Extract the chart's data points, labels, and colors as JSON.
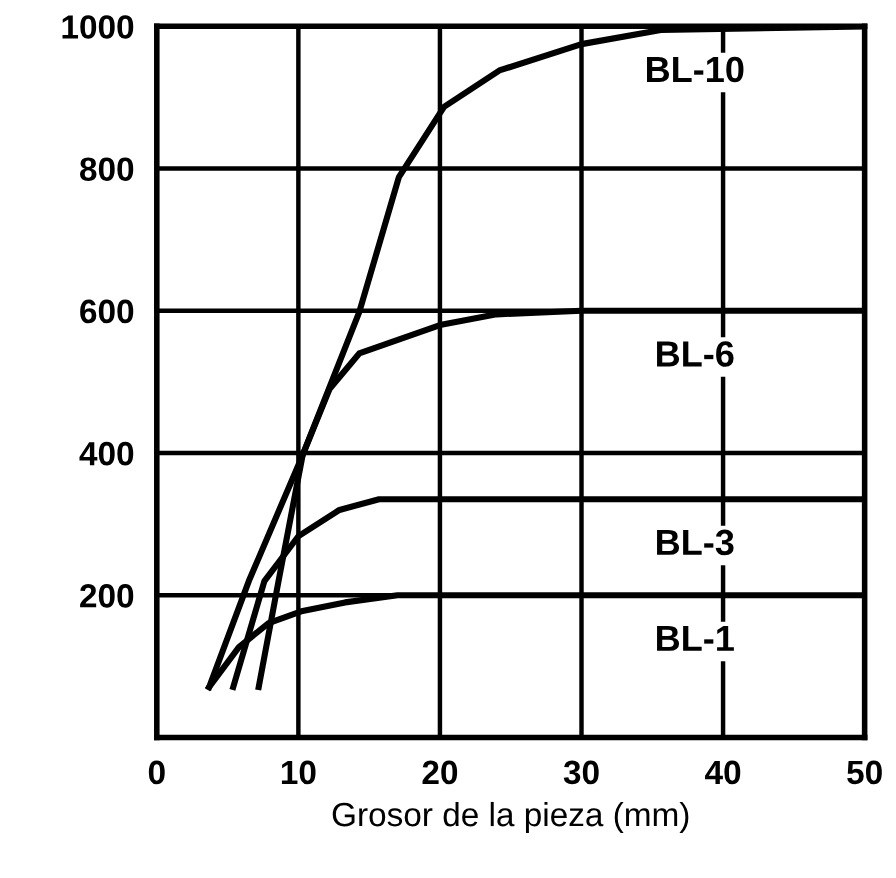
{
  "chart_data": {
    "type": "line",
    "xlabel": "Grosor de la pieza (mm)",
    "xlim": [
      0,
      50
    ],
    "xticks": [
      0,
      10,
      20,
      30,
      40,
      50
    ],
    "ylim": [
      0,
      1000
    ],
    "yticks": [
      {
        "value": 0,
        "label": null
      },
      200,
      400,
      600,
      800,
      1000
    ],
    "grid": true,
    "color": "#000000",
    "series": [
      {
        "name": "BL-1",
        "color": "#000000",
        "x": [
          3.7,
          5.8,
          7.9,
          10.3,
          13.3,
          17,
          50
        ],
        "values": [
          71,
          127,
          161,
          178,
          190,
          200,
          200
        ]
      },
      {
        "name": "BL-3",
        "color": "#000000",
        "x": [
          5.4,
          7.6,
          10,
          12.9,
          15.7,
          50
        ],
        "values": [
          71,
          220,
          283,
          320,
          335,
          335
        ]
      },
      {
        "name": "BL-6",
        "color": "#000000",
        "x": [
          7.2,
          8.6,
          10.3,
          12.2,
          14.3,
          20,
          24,
          30,
          50
        ],
        "values": [
          71,
          220,
          397,
          490,
          540,
          580,
          595,
          600,
          600
        ]
      },
      {
        "name": "BL-10",
        "color": "#000000",
        "x": [
          3.7,
          6.5,
          10.3,
          14.3,
          17.1,
          20.3,
          24.2,
          30,
          35.6,
          50
        ],
        "values": [
          71,
          220,
          397,
          598,
          788,
          887,
          938,
          975,
          995,
          1000
        ]
      }
    ]
  }
}
